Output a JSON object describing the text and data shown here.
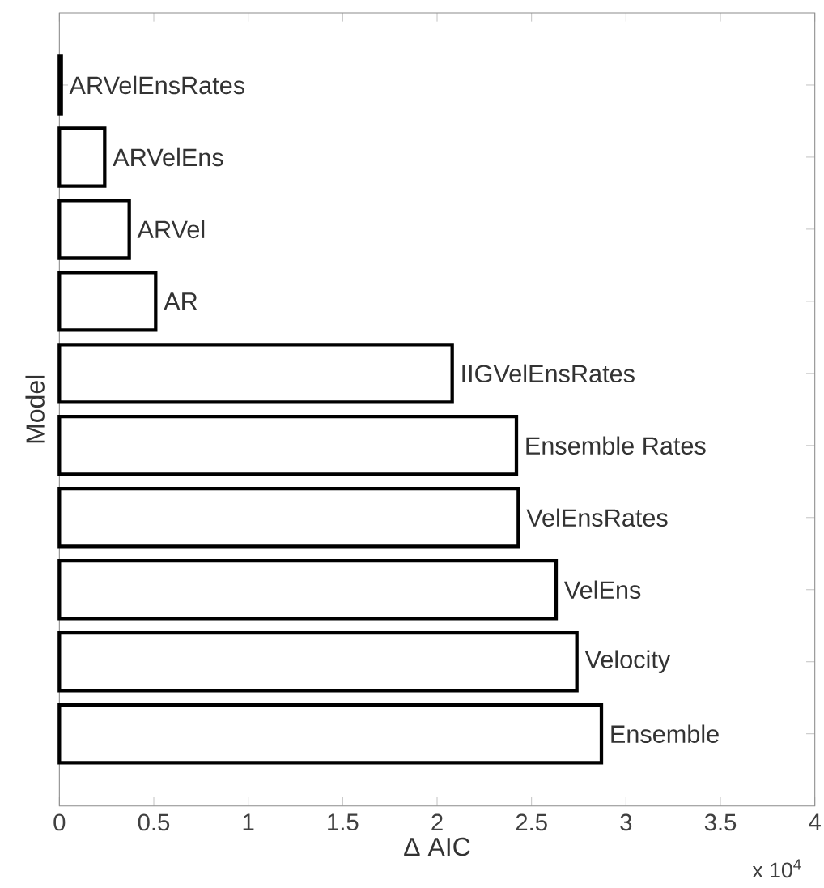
{
  "chart_data": {
    "type": "bar",
    "orientation": "horizontal",
    "xlabel": "Δ AIC",
    "ylabel": "Model",
    "categories": [
      "ARVelEnsRates",
      "ARVelEns",
      "ARVel",
      "AR",
      "IIGVelEnsRates",
      "Ensemble Rates",
      "VelEnsRates",
      "VelEns",
      "Velocity",
      "Ensemble"
    ],
    "values": [
      0.01,
      0.24,
      0.37,
      0.51,
      2.08,
      2.42,
      2.43,
      2.63,
      2.74,
      2.87
    ],
    "color": "#000000",
    "xlim": [
      0,
      4
    ],
    "xticks": [
      0,
      0.5,
      1,
      1.5,
      2,
      2.5,
      3,
      3.5,
      4
    ],
    "tick_labels": "x",
    "annotations": [
      "x 10$^{4}$"
    ]
  }
}
